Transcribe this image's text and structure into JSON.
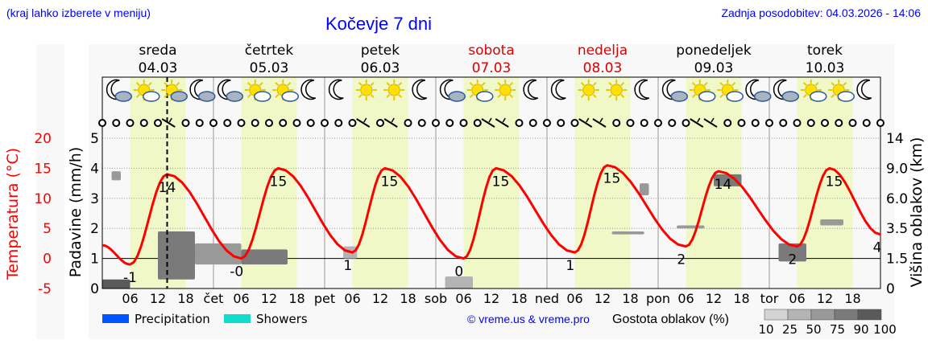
{
  "header": {
    "menu_hint": "(kraj lahko izberete v meniju)",
    "title": "Kočevje 7 dni",
    "updated": "Zadnja posodobitev: 04.03.2026 - 14:06"
  },
  "colors": {
    "temp": "#ff0000",
    "text_blue": "#0000ff",
    "weekend": "#dd0000",
    "day_band": "#f0f8c8",
    "precip": "#0055ff",
    "showers": "#11ddcc"
  },
  "chart_data": {
    "type": "line",
    "days": [
      {
        "name": "sreda",
        "date": "04.03",
        "weekend": false,
        "abbr": ""
      },
      {
        "name": "četrtek",
        "date": "05.03",
        "weekend": false,
        "abbr": "čet"
      },
      {
        "name": "petek",
        "date": "06.03",
        "weekend": false,
        "abbr": "pet"
      },
      {
        "name": "sobota",
        "date": "07.03",
        "weekend": true,
        "abbr": "sob"
      },
      {
        "name": "nedelja",
        "date": "08.03",
        "weekend": true,
        "abbr": "ned"
      },
      {
        "name": "ponedeljek",
        "date": "09.03",
        "weekend": false,
        "abbr": "pon"
      },
      {
        "name": "torek",
        "date": "10.03",
        "weekend": false,
        "abbr": "tor"
      }
    ],
    "hour_ticks": [
      "06",
      "12",
      "18"
    ],
    "now_hour": 14,
    "temp_axis": {
      "label": "Temperatura (°C)",
      "ticks": [
        20,
        15,
        10,
        5,
        0,
        -5
      ],
      "range": [
        -5,
        20
      ]
    },
    "precip_axis": {
      "label": "Padavine (mm/h)",
      "ticks": [
        5,
        4,
        3,
        2,
        1,
        0
      ],
      "range": [
        0,
        5
      ]
    },
    "cloud_axis": {
      "label": "Višina oblakov (km)",
      "ticks": [
        "14",
        "9.0",
        "6.0",
        "3.5",
        "1.5",
        "0"
      ]
    },
    "temperature_keypoints": [
      [
        0,
        2.2
      ],
      [
        6,
        -1
      ],
      [
        14,
        14
      ],
      [
        30,
        0
      ],
      [
        38,
        15
      ],
      [
        54,
        1
      ],
      [
        61,
        15
      ],
      [
        78,
        0
      ],
      [
        85,
        15
      ],
      [
        102,
        1
      ],
      [
        109,
        15.5
      ],
      [
        126,
        2
      ],
      [
        133,
        14.5
      ],
      [
        150,
        2
      ],
      [
        157,
        15
      ],
      [
        168,
        4
      ]
    ],
    "temp_labels": [
      {
        "hour": 6,
        "value": "-1",
        "pos": "below"
      },
      {
        "hour": 14,
        "value": "14",
        "pos": "below"
      },
      {
        "hour": 29,
        "value": "-0",
        "pos": "below"
      },
      {
        "hour": 38,
        "value": "15",
        "pos": "below"
      },
      {
        "hour": 53,
        "value": "1",
        "pos": "below"
      },
      {
        "hour": 62,
        "value": "15",
        "pos": "below"
      },
      {
        "hour": 77,
        "value": "0",
        "pos": "below"
      },
      {
        "hour": 86,
        "value": "15",
        "pos": "below"
      },
      {
        "hour": 101,
        "value": "1",
        "pos": "below"
      },
      {
        "hour": 110,
        "value": "15",
        "pos": "below"
      },
      {
        "hour": 125,
        "value": "2",
        "pos": "below"
      },
      {
        "hour": 134,
        "value": "14",
        "pos": "below"
      },
      {
        "hour": 149,
        "value": "2",
        "pos": "below"
      },
      {
        "hour": 158,
        "value": "15",
        "pos": "below"
      },
      {
        "hour": 168,
        "value": "4",
        "pos": "below"
      }
    ],
    "weather_icons": [
      "moon-cloud",
      "sun-cloud",
      "sun-darkcloud",
      "moon-cloud",
      "moon-cloud",
      "sun-cloud",
      "sun-cloud",
      "moon",
      "moon",
      "sun",
      "sun",
      "moon",
      "moon-cloud",
      "sun-cloud",
      "sun",
      "moon",
      "moon",
      "sun",
      "sun",
      "moon",
      "moon-cloud",
      "sun-cloud",
      "sun-cloud",
      "moon-cloud",
      "moon-cloud",
      "sun-cloud",
      "sun-cloud",
      "moon"
    ],
    "wind_barb_hours": [
      15,
      57,
      63,
      84,
      87,
      105,
      108,
      129,
      132
    ],
    "cloud_patches": [
      {
        "h0": 0,
        "h1": 6,
        "k0": 0,
        "k1": 0.3,
        "density": 90
      },
      {
        "h0": 12,
        "h1": 20,
        "k0": 0.3,
        "k1": 1.9,
        "density": 75
      },
      {
        "h0": 20,
        "h1": 30,
        "k0": 0.8,
        "k1": 1.5,
        "density": 50
      },
      {
        "h0": 30,
        "h1": 40,
        "k0": 0.8,
        "k1": 1.3,
        "density": 75
      },
      {
        "h0": 52,
        "h1": 55,
        "k0": 1.0,
        "k1": 1.4,
        "density": 25
      },
      {
        "h0": 74,
        "h1": 80,
        "k0": 0,
        "k1": 0.4,
        "density": 25
      },
      {
        "h0": 110,
        "h1": 117,
        "k0": 1.8,
        "k1": 1.9,
        "density": 50
      },
      {
        "h0": 124,
        "h1": 130,
        "k0": 2.0,
        "k1": 2.1,
        "density": 50
      },
      {
        "h0": 132,
        "h1": 138,
        "k0": 3.4,
        "k1": 3.8,
        "density": 75
      },
      {
        "h0": 146,
        "h1": 152,
        "k0": 0.9,
        "k1": 1.5,
        "density": 75
      },
      {
        "h0": 155,
        "h1": 160,
        "k0": 2.1,
        "k1": 2.3,
        "density": 50
      },
      {
        "h0": 2,
        "h1": 4,
        "k0": 3.6,
        "k1": 3.9,
        "density": 50
      },
      {
        "h0": 116,
        "h1": 118,
        "k0": 3.1,
        "k1": 3.5,
        "density": 50
      }
    ]
  },
  "legend": {
    "precipitation": "Precipitation",
    "showers": "Showers",
    "copyright": "© vreme.us & vreme.pro",
    "cloud_density_title": "Gostota oblakov (%)",
    "cloud_density_ticks": [
      "10",
      "25",
      "50",
      "75",
      "90",
      "100"
    ]
  }
}
